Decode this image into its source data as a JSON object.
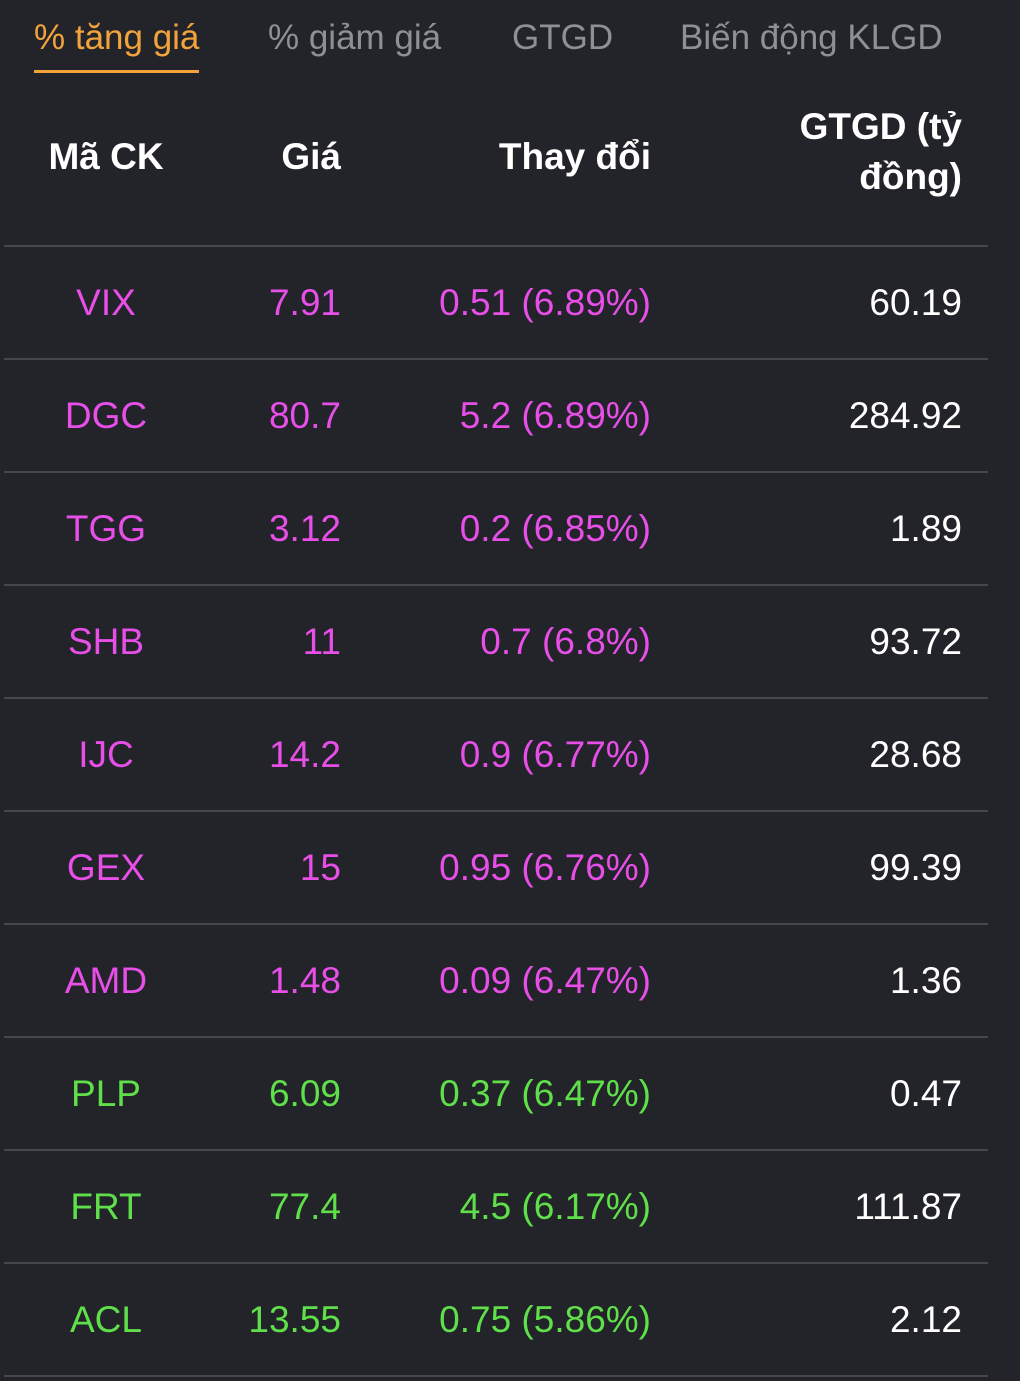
{
  "tabs": [
    {
      "label": "% tăng giá",
      "active": true
    },
    {
      "label": "% giảm giá",
      "active": false
    },
    {
      "label": "GTGD",
      "active": false
    },
    {
      "label": "Biến động KLGD",
      "active": false
    }
  ],
  "table": {
    "headers": {
      "code": "Mã CK",
      "price": "Giá",
      "change": "Thay đổi",
      "value_line1": "GTGD (tỷ",
      "value_line2": "đồng)"
    },
    "rows": [
      {
        "code": "VIX",
        "price": "7.91",
        "change": "0.51 (6.89%)",
        "value": "60.19",
        "color": "pink"
      },
      {
        "code": "DGC",
        "price": "80.7",
        "change": "5.2 (6.89%)",
        "value": "284.92",
        "color": "pink"
      },
      {
        "code": "TGG",
        "price": "3.12",
        "change": "0.2 (6.85%)",
        "value": "1.89",
        "color": "pink"
      },
      {
        "code": "SHB",
        "price": "11",
        "change": "0.7 (6.8%)",
        "value": "93.72",
        "color": "pink"
      },
      {
        "code": "IJC",
        "price": "14.2",
        "change": "0.9 (6.77%)",
        "value": "28.68",
        "color": "pink"
      },
      {
        "code": "GEX",
        "price": "15",
        "change": "0.95 (6.76%)",
        "value": "99.39",
        "color": "pink"
      },
      {
        "code": "AMD",
        "price": "1.48",
        "change": "0.09 (6.47%)",
        "value": "1.36",
        "color": "pink"
      },
      {
        "code": "PLP",
        "price": "6.09",
        "change": "0.37 (6.47%)",
        "value": "0.47",
        "color": "green"
      },
      {
        "code": "FRT",
        "price": "77.4",
        "change": "4.5 (6.17%)",
        "value": "111.87",
        "color": "green"
      },
      {
        "code": "ACL",
        "price": "13.55",
        "change": "0.75 (5.86%)",
        "value": "2.12",
        "color": "green"
      }
    ]
  },
  "colors": {
    "accent_active_tab": "#f3a33c",
    "inactive_tab": "#8e9098",
    "ceiling_pink": "#e84ee8",
    "up_green": "#5fe04a",
    "background": "#232429",
    "divider": "#46474d"
  }
}
